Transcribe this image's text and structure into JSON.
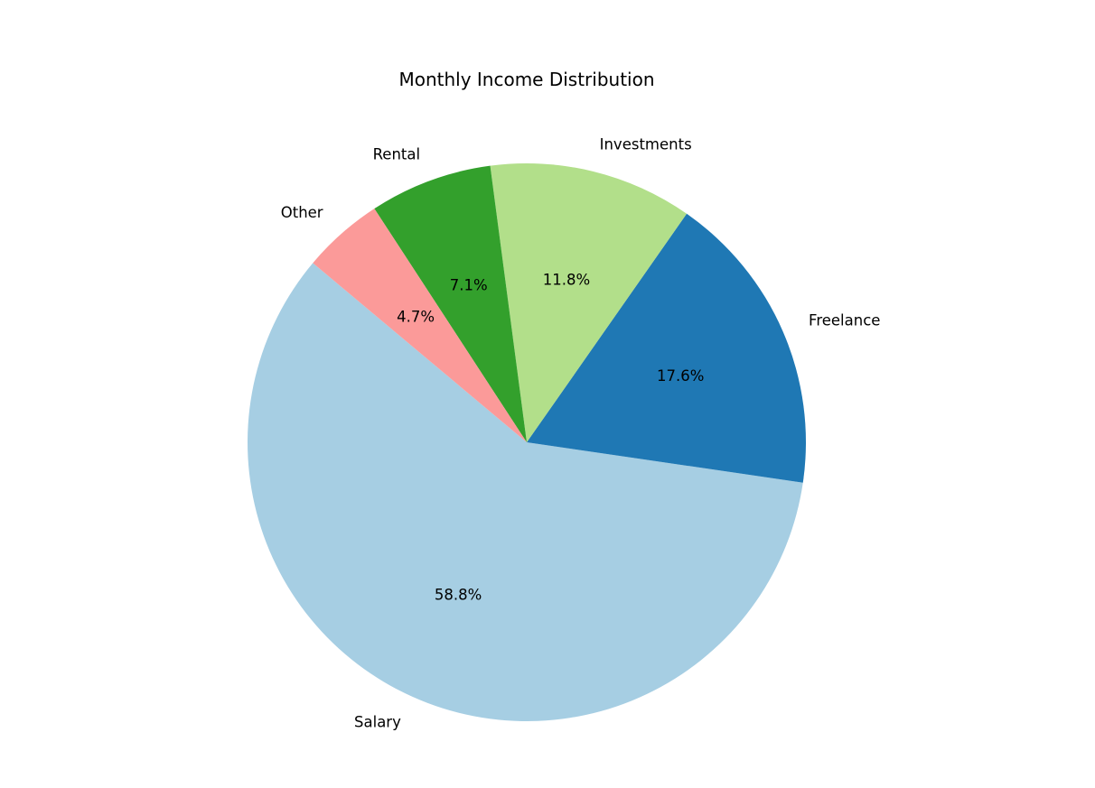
{
  "chart_data": {
    "type": "pie",
    "title": "Monthly Income Distribution",
    "start_angle_deg": 140,
    "direction": "counterclockwise",
    "slices": [
      {
        "label": "Salary",
        "value": 58.8,
        "pct_label": "58.8%",
        "color": "#a6cee3"
      },
      {
        "label": "Freelance",
        "value": 17.6,
        "pct_label": "17.6%",
        "color": "#1f78b4"
      },
      {
        "label": "Investments",
        "value": 11.8,
        "pct_label": "11.8%",
        "color": "#b2df8a"
      },
      {
        "label": "Rental",
        "value": 7.1,
        "pct_label": "7.1%",
        "color": "#33a02c"
      },
      {
        "label": "Other",
        "value": 4.7,
        "pct_label": "4.7%",
        "color": "#fb9a99"
      }
    ]
  }
}
